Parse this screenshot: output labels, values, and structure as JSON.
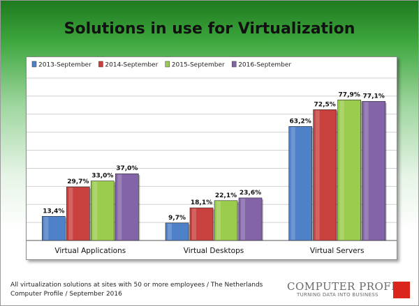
{
  "chart_data": {
    "type": "bar",
    "title": "Solutions in use for Virtualization",
    "categories": [
      "Virtual Applications",
      "Virtual Desktops",
      "Virtual Servers"
    ],
    "series": [
      {
        "name": "2013-September",
        "color": "#4f81c8",
        "values": [
          13.4,
          9.7,
          63.2
        ],
        "labels": [
          "13,4%",
          "9,7%",
          "63,2%"
        ]
      },
      {
        "name": "2014-September",
        "color": "#c9413e",
        "values": [
          29.7,
          18.1,
          72.5
        ],
        "labels": [
          "29,7%",
          "18,1%",
          "72,5%"
        ]
      },
      {
        "name": "2015-September",
        "color": "#9bcc4e",
        "values": [
          33.0,
          22.1,
          77.9
        ],
        "labels": [
          "33,0%",
          "22,1%",
          "77,9%"
        ]
      },
      {
        "name": "2016-September",
        "color": "#8364a8",
        "values": [
          37.0,
          23.6,
          77.1
        ],
        "labels": [
          "37,0%",
          "23,6%",
          "77,1%"
        ]
      }
    ],
    "ylim": [
      0,
      90
    ],
    "grid": true,
    "legend_position": "top-left"
  },
  "footer": {
    "line1": "All virtualization solutions at sites with 50 or more employees / The Netherlands",
    "line2": "Computer Profile / September 2016"
  },
  "logo": {
    "name": "COMPUTER PROFILE",
    "tagline": "TURNING DATA INTO BUSINESS"
  }
}
